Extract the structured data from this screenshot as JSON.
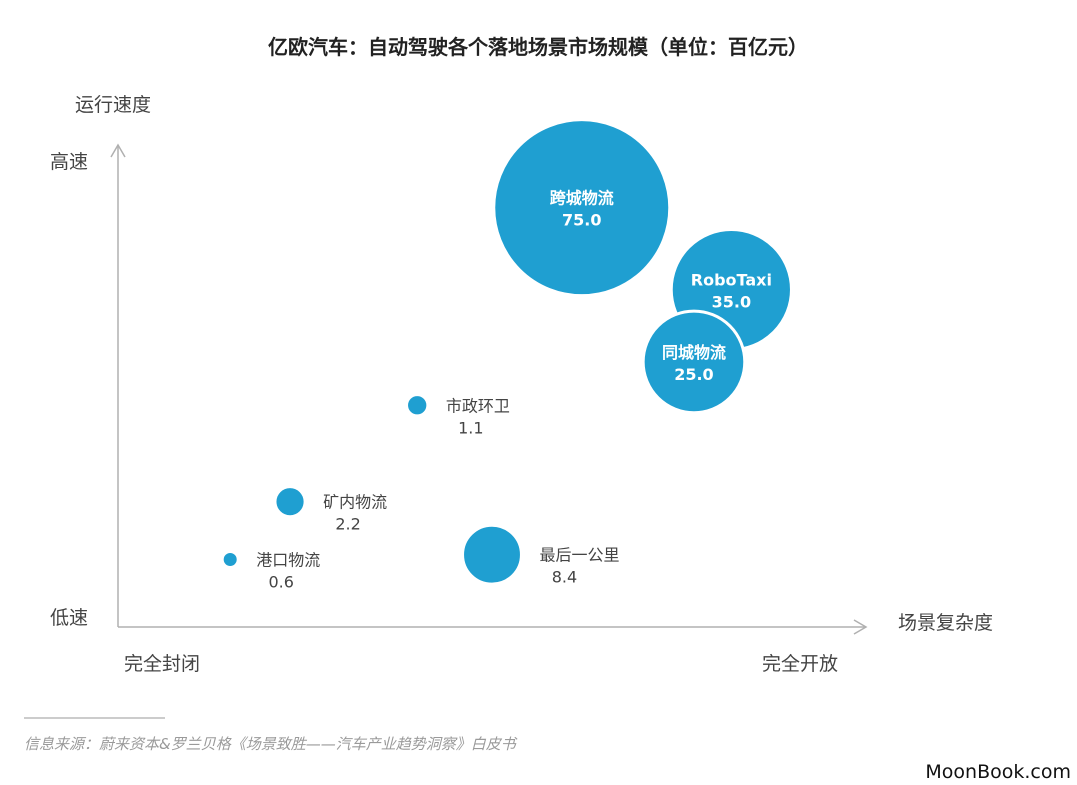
{
  "title": "亿欧汽车：自动驾驶各个落地场景市场规模（单位：百亿元）",
  "source_note": "信息来源：蔚来资本&罗兰贝格《场景致胜——汽车产业趋势洞察》白皮书",
  "brand": "MoonBook.com",
  "colors": {
    "bubble": "#1f9fd1",
    "axis": "#b0b0b0"
  },
  "chart_data": {
    "type": "scatter",
    "title": "亿欧汽车：自动驾驶各个落地场景市场规模（单位：百亿元）",
    "xlabel": "场景复杂度",
    "ylabel": "运行速度",
    "x_ticks": [
      "完全封闭",
      "完全开放"
    ],
    "y_ticks": [
      "低速",
      "高速"
    ],
    "xlim": [
      0,
      100
    ],
    "ylim": [
      0,
      100
    ],
    "size_unit": "百亿元",
    "points": [
      {
        "label": "跨城物流",
        "value": "75.0",
        "size": 75.0,
        "x": 62,
        "y": 87
      },
      {
        "label": "RoboTaxi",
        "value": "35.0",
        "size": 35.0,
        "x": 82,
        "y": 70
      },
      {
        "label": "同城物流",
        "value": "25.0",
        "size": 25.0,
        "x": 77,
        "y": 55
      },
      {
        "label": "市政环卫",
        "value": "1.1",
        "size": 1.1,
        "x": 40,
        "y": 46
      },
      {
        "label": "矿内物流",
        "value": "2.2",
        "size": 2.2,
        "x": 23,
        "y": 26
      },
      {
        "label": "最后一公里",
        "value": "8.4",
        "size": 8.4,
        "x": 50,
        "y": 15
      },
      {
        "label": "港口物流",
        "value": "0.6",
        "size": 0.6,
        "x": 15,
        "y": 14
      }
    ]
  }
}
